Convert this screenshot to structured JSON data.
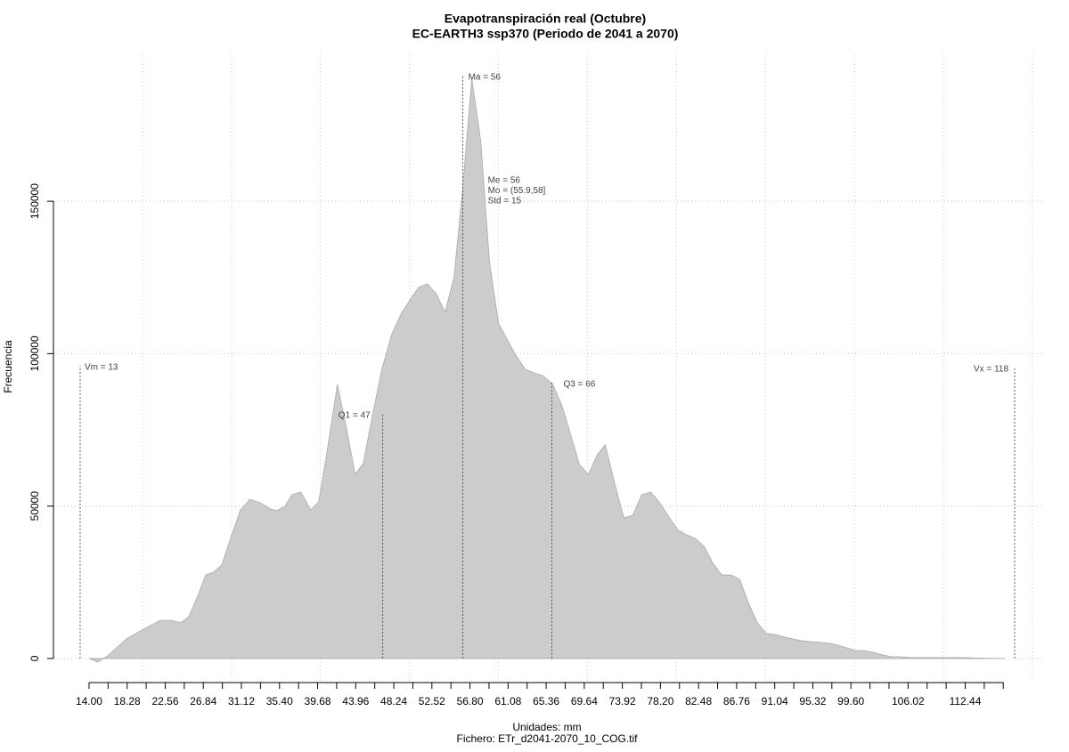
{
  "chart_data": {
    "type": "area",
    "title": "Evapotranspiración real (Octubre)",
    "subtitle": "EC-EARTH3 ssp370 (Periodo de 2041 a 2070)",
    "x_label": "Unidades: mm",
    "footnote": "Fichero: ETr_d2041-2070_10_COG.tif",
    "y_label": "Frecuencia",
    "x": [
      14.0,
      15.0,
      16.1,
      17.1,
      18.2,
      20.3,
      22.0,
      23.3,
      24.3,
      25.2,
      26.2,
      27.1,
      28.0,
      28.9,
      29.9,
      31.0,
      32.1,
      33.2,
      34.4,
      35.1,
      36.0,
      36.8,
      37.8,
      38.9,
      39.8,
      40.7,
      41.9,
      42.9,
      43.9,
      44.8,
      45.9,
      46.9,
      48.0,
      49.1,
      50.0,
      51.0,
      52.0,
      53.0,
      54.0,
      55.0,
      56.0,
      57.0,
      58.0,
      59.0,
      60.0,
      61.0,
      62.0,
      63.0,
      64.0,
      65.0,
      66.1,
      67.1,
      68.1,
      69.1,
      70.1,
      71.1,
      72.0,
      73.1,
      74.1,
      75.1,
      76.1,
      77.1,
      78.1,
      79.1,
      80.1,
      81.1,
      82.1,
      83.1,
      84.1,
      85.1,
      86.1,
      87.1,
      88.1,
      89.1,
      90.1,
      91.1,
      92.1,
      93.1,
      94.1,
      95.1,
      96.1,
      97.1,
      98.1,
      99.1,
      100.1,
      101.1,
      102.1,
      103.1,
      104.1,
      105.1,
      106.1,
      108.1,
      112.1,
      114.1,
      116.9
    ],
    "series": [
      {
        "color": "#cccccc",
        "values": [
          0,
          -1200,
          900,
          3500,
          6400,
          9900,
          12500,
          12500,
          11700,
          13700,
          20400,
          27400,
          28300,
          30600,
          39400,
          48700,
          52200,
          51100,
          49000,
          48500,
          49900,
          53700,
          54600,
          48700,
          51400,
          67100,
          89900,
          75900,
          60400,
          63900,
          80600,
          94900,
          106300,
          113300,
          117300,
          121700,
          122900,
          119700,
          113600,
          124900,
          154700,
          190300,
          169900,
          129900,
          110000,
          104500,
          99200,
          94900,
          93700,
          92800,
          89900,
          83200,
          73600,
          63600,
          60400,
          66800,
          70100,
          56900,
          46100,
          47000,
          53700,
          54600,
          51100,
          46700,
          42300,
          40600,
          39400,
          36800,
          31200,
          27400,
          27400,
          26000,
          18100,
          11700,
          8200,
          7900,
          7000,
          6400,
          5800,
          5500,
          5300,
          5000,
          4400,
          3500,
          2600,
          2600,
          2000,
          1200,
          600,
          600,
          300,
          300,
          300,
          100,
          0
        ]
      }
    ],
    "markers": [
      {
        "label": "Vm = 13",
        "x": 13,
        "y": 96000
      },
      {
        "label": "Q1 = 47",
        "x": 47,
        "y": 80300
      },
      {
        "label": "Ma = 56",
        "x": 56,
        "y": 191200
      },
      {
        "label": "Q3 = 66",
        "x": 66,
        "y": 90500
      },
      {
        "label": "Vx = 118",
        "x": 118,
        "y": 95500
      }
    ],
    "stats": [
      "Me = 56",
      "Mo = (55.9,58]",
      "Std = 15"
    ],
    "xlim": [
      10,
      121.1
    ],
    "ylim": [
      -8200,
      198500
    ],
    "xticks": [
      {
        "value": 14.0,
        "label": "14.00"
      },
      {
        "value": 18.28,
        "label": "18.28"
      },
      {
        "value": 22.56,
        "label": "22.56"
      },
      {
        "value": 26.84,
        "label": "26.84"
      },
      {
        "value": 31.12,
        "label": "31.12"
      },
      {
        "value": 35.4,
        "label": "35.40"
      },
      {
        "value": 39.68,
        "label": "39.68"
      },
      {
        "value": 43.96,
        "label": "43.96"
      },
      {
        "value": 48.24,
        "label": "48.24"
      },
      {
        "value": 52.52,
        "label": "52.52"
      },
      {
        "value": 56.8,
        "label": "56.80"
      },
      {
        "value": 61.08,
        "label": "61.08"
      },
      {
        "value": 65.36,
        "label": "65.36"
      },
      {
        "value": 69.64,
        "label": "69.64"
      },
      {
        "value": 73.92,
        "label": "73.92"
      },
      {
        "value": 78.2,
        "label": "78.20"
      },
      {
        "value": 82.48,
        "label": "82.48"
      },
      {
        "value": 86.76,
        "label": "86.76"
      },
      {
        "value": 91.04,
        "label": "91.04"
      },
      {
        "value": 95.32,
        "label": "95.32"
      },
      {
        "value": 99.6,
        "label": "99.60"
      },
      {
        "value": 106.02,
        "label": "106.02"
      },
      {
        "value": 112.44,
        "label": "112.44"
      }
    ],
    "xminorticks": [
      16.14,
      20.42,
      24.7,
      28.98,
      33.26,
      37.54,
      41.82,
      46.1,
      50.38,
      54.66,
      58.94,
      63.22,
      67.5,
      71.78,
      76.06,
      80.34,
      84.62,
      88.9,
      93.18,
      97.46,
      101.74,
      103.88,
      108.16,
      110.3,
      114.58,
      116.72
    ],
    "xgrid": [
      20,
      30,
      40,
      50,
      60,
      70,
      80,
      90,
      100,
      110,
      120
    ],
    "yticks": [
      0,
      50000,
      100000,
      150000
    ],
    "grid": true
  }
}
